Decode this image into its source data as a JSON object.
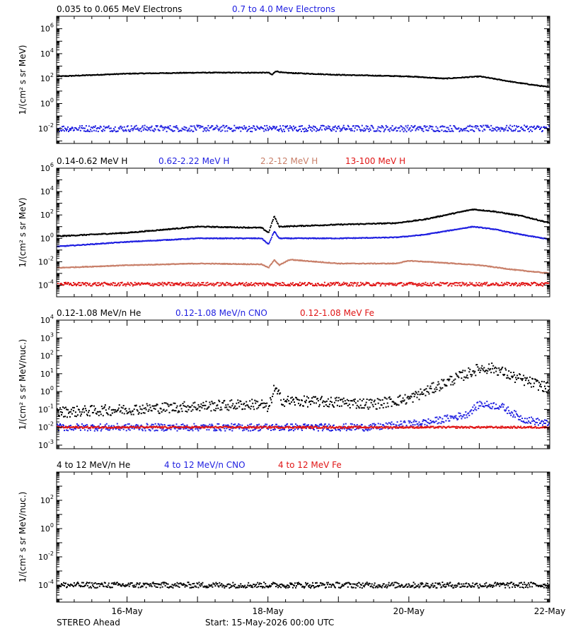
{
  "footer": {
    "left": "STEREO Ahead",
    "center": "Start: 15-May-2026 00:00 UTC"
  },
  "colors": {
    "black": "#000000",
    "blue": "#1f1fe0",
    "brown": "#c87f69",
    "red": "#e01515",
    "axis": "#000000"
  },
  "x_axis": {
    "range": [
      "15-May-2026 00:00",
      "22-May-2026 00:00"
    ],
    "tick_labels": [
      {
        "label": "16-May",
        "day": 1
      },
      {
        "label": "18-May",
        "day": 3
      },
      {
        "label": "20-May",
        "day": 5
      },
      {
        "label": "22-May",
        "day": 7
      }
    ]
  },
  "chart_data": [
    {
      "type": "scatter",
      "ylabel": "1/(cm² s sr MeV)",
      "ylim_log10": [
        -3.2,
        7
      ],
      "y_ticks": [
        {
          "exp": -2,
          "label": "10",
          "sup": "-2"
        },
        {
          "exp": 0,
          "label": "10",
          "sup": "0"
        },
        {
          "exp": 2,
          "label": "10",
          "sup": "2"
        },
        {
          "exp": 4,
          "label": "10",
          "sup": "4"
        },
        {
          "exp": 6,
          "label": "10",
          "sup": "6"
        }
      ],
      "legend": [
        {
          "text": "0.035 to 0.065 MeV Electrons",
          "color": "#000000"
        },
        {
          "text": "0.7 to 4.0 Mev Electrons",
          "color": "#1f1fe0"
        }
      ],
      "series": [
        {
          "name": "0.035 to 0.065 MeV Electrons",
          "color": "#000000",
          "scatter": 0.03,
          "x_days": [
            0,
            1,
            2,
            3,
            3.05,
            3.1,
            3.2,
            4,
            5,
            5.5,
            6,
            6.5,
            7
          ],
          "y": [
            150,
            250,
            300,
            300,
            200,
            400,
            300,
            200,
            150,
            100,
            150,
            50,
            20
          ]
        },
        {
          "name": "0.7 to 4.0 Mev Electrons",
          "color": "#1f1fe0",
          "scatter": 0.25,
          "x_days": [
            0,
            7
          ],
          "y": [
            0.01,
            0.01
          ]
        }
      ]
    },
    {
      "type": "scatter",
      "ylabel": "1/(cm² s sr MeV)",
      "ylim_log10": [
        -5,
        6
      ],
      "y_ticks": [
        {
          "exp": -4,
          "label": "10",
          "sup": "-4"
        },
        {
          "exp": -2,
          "label": "10",
          "sup": "-2"
        },
        {
          "exp": 0,
          "label": "10",
          "sup": "0"
        },
        {
          "exp": 2,
          "label": "10",
          "sup": "2"
        },
        {
          "exp": 4,
          "label": "10",
          "sup": "4"
        },
        {
          "exp": 6,
          "label": "10",
          "sup": "6"
        }
      ],
      "legend": [
        {
          "text": "0.14-0.62 MeV H",
          "color": "#000000"
        },
        {
          "text": "0.62-2.22 MeV H",
          "color": "#1f1fe0"
        },
        {
          "text": "2.2-12 MeV H",
          "color": "#c87f69"
        },
        {
          "text": "13-100 MeV H",
          "color": "#e01515"
        }
      ],
      "series": [
        {
          "name": "0.14-0.62 MeV H",
          "color": "#000000",
          "scatter": 0.04,
          "x_days": [
            0,
            1,
            2,
            2.9,
            3.0,
            3.08,
            3.15,
            4,
            4.8,
            5.2,
            5.9,
            6.2,
            6.6,
            7
          ],
          "y": [
            1.5,
            3,
            10,
            8,
            3,
            80,
            10,
            15,
            20,
            40,
            300,
            200,
            80,
            20
          ]
        },
        {
          "name": "0.62-2.22 MeV H",
          "color": "#1f1fe0",
          "scatter": 0.03,
          "x_days": [
            0,
            1,
            2,
            2.9,
            3.0,
            3.08,
            3.15,
            4,
            4.8,
            5.2,
            5.9,
            6.2,
            6.6,
            7
          ],
          "y": [
            0.2,
            0.5,
            1,
            1,
            0.3,
            4,
            1,
            1,
            1.2,
            2,
            10,
            6,
            2,
            0.8
          ]
        },
        {
          "name": "2.2-12 MeV H",
          "color": "#c87f69",
          "scatter": 0.03,
          "x_days": [
            0,
            1,
            2,
            2.9,
            3.0,
            3.08,
            3.15,
            3.3,
            4,
            4.8,
            5.0,
            5.5,
            6,
            6.5,
            7
          ],
          "y": [
            0.003,
            0.005,
            0.007,
            0.006,
            0.003,
            0.015,
            0.005,
            0.015,
            0.007,
            0.007,
            0.012,
            0.008,
            0.005,
            0.002,
            0.001
          ]
        },
        {
          "name": "13-100 MeV H",
          "color": "#e01515",
          "scatter": 0.15,
          "x_days": [
            0,
            7
          ],
          "y": [
            0.00012,
            0.00012
          ]
        }
      ]
    },
    {
      "type": "scatter",
      "ylabel": "1/(cm² s sr MeV/nuc.)",
      "ylim_log10": [
        -3.2,
        4
      ],
      "y_ticks": [
        {
          "exp": -3,
          "label": "10",
          "sup": "-3"
        },
        {
          "exp": -2,
          "label": "10",
          "sup": "-2"
        },
        {
          "exp": -1,
          "label": "10",
          "sup": "-1"
        },
        {
          "exp": 0,
          "label": "10",
          "sup": "0"
        },
        {
          "exp": 1,
          "label": "10",
          "sup": "1"
        },
        {
          "exp": 2,
          "label": "10",
          "sup": "2"
        },
        {
          "exp": 3,
          "label": "10",
          "sup": "3"
        },
        {
          "exp": 4,
          "label": "10",
          "sup": "4"
        }
      ],
      "legend": [
        {
          "text": "0.12-1.08 MeV/n He",
          "color": "#000000"
        },
        {
          "text": "0.12-1.08 MeV/n CNO",
          "color": "#1f1fe0"
        },
        {
          "text": "0.12-1.08 MeV Fe",
          "color": "#e01515"
        }
      ],
      "series": [
        {
          "name": "0.12-1.08 MeV/n He",
          "color": "#000000",
          "scatter": 0.3,
          "x_days": [
            0,
            1,
            2,
            2.9,
            3.0,
            3.08,
            3.2,
            4,
            4.5,
            5,
            5.5,
            6,
            6.2,
            6.5,
            7
          ],
          "y": [
            0.07,
            0.1,
            0.15,
            0.2,
            0.1,
            1.5,
            0.3,
            0.25,
            0.2,
            0.4,
            3,
            20,
            20,
            6,
            1.5
          ]
        },
        {
          "name": "0.12-1.08 MeV/n CNO",
          "color": "#1f1fe0",
          "scatter": 0.2,
          "x_days": [
            0,
            4.5,
            5.3,
            5.8,
            6.0,
            6.3,
            6.6,
            7
          ],
          "y": [
            0.01,
            0.01,
            0.02,
            0.05,
            0.2,
            0.15,
            0.03,
            0.015
          ]
        },
        {
          "name": "0.12-1.08 MeV Fe",
          "color": "#e01515",
          "scatter": 0.05,
          "x_days": [
            0,
            7
          ],
          "y": [
            0.01,
            0.01
          ]
        }
      ]
    },
    {
      "type": "scatter",
      "ylabel": "1/(cm² s sr MeV/nuc.)",
      "ylim_log10": [
        -5.2,
        4
      ],
      "y_ticks": [
        {
          "exp": -4,
          "label": "10",
          "sup": "-4"
        },
        {
          "exp": -2,
          "label": "10",
          "sup": "-2"
        },
        {
          "exp": 0,
          "label": "10",
          "sup": "0"
        },
        {
          "exp": 2,
          "label": "10",
          "sup": "2"
        }
      ],
      "legend": [
        {
          "text": "4 to 12 MeV/n He",
          "color": "#000000"
        },
        {
          "text": "4 to 12 MeV/n CNO",
          "color": "#1f1fe0"
        },
        {
          "text": "4 to 12 MeV Fe",
          "color": "#e01515"
        }
      ],
      "series": [
        {
          "name": "4 to 12 MeV/n He",
          "color": "#000000",
          "scatter": 0.2,
          "x_days": [
            0,
            7
          ],
          "y": [
            0.0001,
            0.0001
          ]
        },
        {
          "name": "4 to 12 MeV/n CNO",
          "color": "#1f1fe0",
          "scatter": 0.0,
          "x_days": [
            0,
            7
          ],
          "y": [
            1e-05,
            1e-05
          ]
        },
        {
          "name": "4 to 12 MeV Fe",
          "color": "#e01515",
          "scatter": 0.0,
          "x_days": [
            0,
            7
          ],
          "y": [
            1e-05,
            1e-05
          ]
        }
      ]
    }
  ]
}
